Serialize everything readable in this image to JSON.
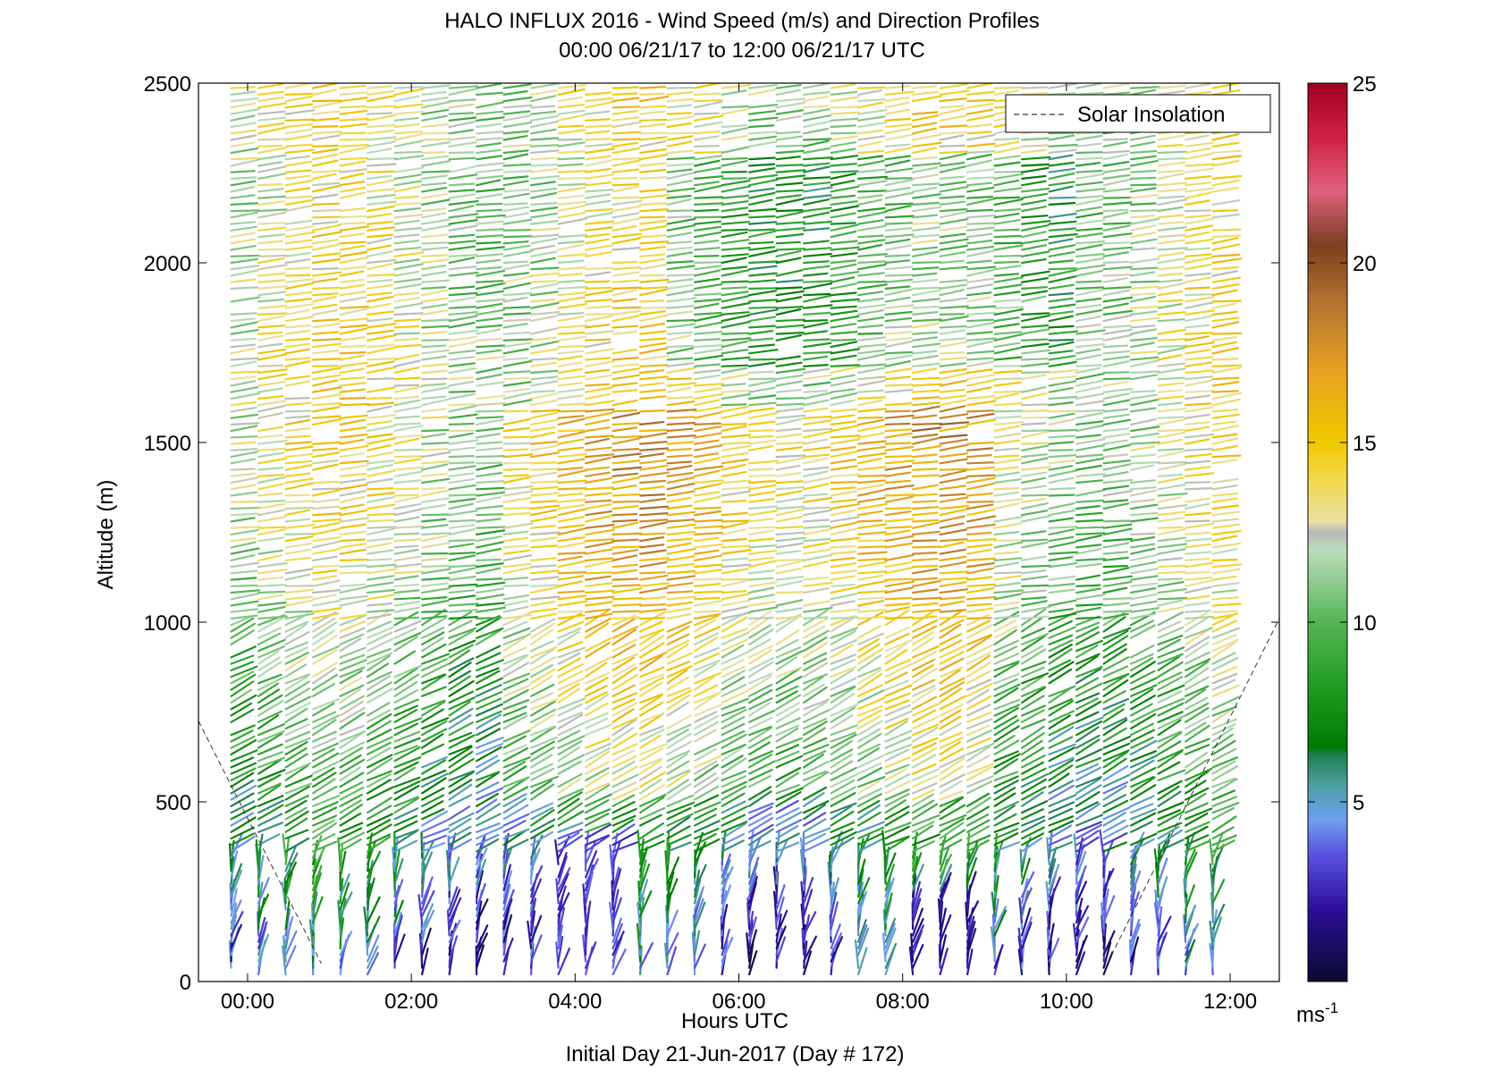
{
  "chart_data": {
    "type": "scatter",
    "title": "HALO INFLUX 2016 - Wind Speed (m/s) and Direction Profiles",
    "subtitle": "00:00 06/21/17 to 12:00 06/21/17  UTC",
    "xlabel": "Hours UTC",
    "xlabel2": "Initial Day 21-Jun-2017 (Day # 172)",
    "ylabel": "Altitude (m)",
    "xlim": [
      -0.6,
      12.6
    ],
    "ylim": [
      0,
      2500
    ],
    "xticks": [
      0,
      2,
      4,
      6,
      8,
      10,
      12
    ],
    "xtick_labels": [
      "00:00",
      "02:00",
      "04:00",
      "06:00",
      "08:00",
      "10:00",
      "12:00"
    ],
    "yticks": [
      0,
      500,
      1000,
      1500,
      2000,
      2500
    ],
    "ytick_labels": [
      "0",
      "500",
      "1000",
      "1500",
      "2000",
      "2500"
    ],
    "legend": {
      "position": "top-right",
      "entries": [
        "Solar Insolation"
      ]
    },
    "colorbar": {
      "range": [
        0,
        25
      ],
      "ticks": [
        5,
        10,
        15,
        20,
        25
      ],
      "tick_labels": [
        "5",
        "10",
        "15",
        "20",
        "25"
      ],
      "unit": "ms",
      "unit_exponent": "-1",
      "stops": [
        {
          "v": 0,
          "c": "#0a0a30"
        },
        {
          "v": 2,
          "c": "#2a0f9a"
        },
        {
          "v": 3.5,
          "c": "#5a4fe0"
        },
        {
          "v": 4.5,
          "c": "#6f9ef0"
        },
        {
          "v": 5.5,
          "c": "#4aa0a0"
        },
        {
          "v": 6.3,
          "c": "#1f7f4f"
        },
        {
          "v": 6.5,
          "c": "#007a00"
        },
        {
          "v": 8,
          "c": "#1a9a1a"
        },
        {
          "v": 10,
          "c": "#55b555"
        },
        {
          "v": 12,
          "c": "#bbddbb"
        },
        {
          "v": 12.5,
          "c": "#b8b8b8"
        },
        {
          "v": 12.8,
          "c": "#e8e0a0"
        },
        {
          "v": 14,
          "c": "#f2d84a"
        },
        {
          "v": 15,
          "c": "#f0c800"
        },
        {
          "v": 17,
          "c": "#e8a020"
        },
        {
          "v": 19,
          "c": "#b07030"
        },
        {
          "v": 20.5,
          "c": "#7a4020"
        },
        {
          "v": 22,
          "c": "#e06080"
        },
        {
          "v": 23.5,
          "c": "#d02040"
        },
        {
          "v": 25,
          "c": "#a00020"
        }
      ]
    },
    "barb_grid": {
      "times_start": -0.2,
      "times_end": 11.8,
      "times_step": 0.333,
      "alt_start": 20,
      "alt_end": 2490,
      "alt_step": 18
    },
    "series": [
      {
        "name": "Solar Insolation",
        "style": "dashed",
        "segments": [
          {
            "x": [
              -0.6,
              0.9
            ],
            "y": [
              725,
              50
            ]
          },
          {
            "x": [
              10.5,
              12.6
            ],
            "y": [
              50,
              1010
            ]
          }
        ]
      }
    ],
    "wind_speed_profile": [
      {
        "alt": 0,
        "speed": 3
      },
      {
        "alt": 300,
        "speed": 6
      },
      {
        "alt": 700,
        "speed": 9
      },
      {
        "alt": 1200,
        "speed": 12
      },
      {
        "alt": 1700,
        "speed": 13
      },
      {
        "alt": 2200,
        "speed": 12
      },
      {
        "alt": 2500,
        "speed": 13
      }
    ]
  }
}
